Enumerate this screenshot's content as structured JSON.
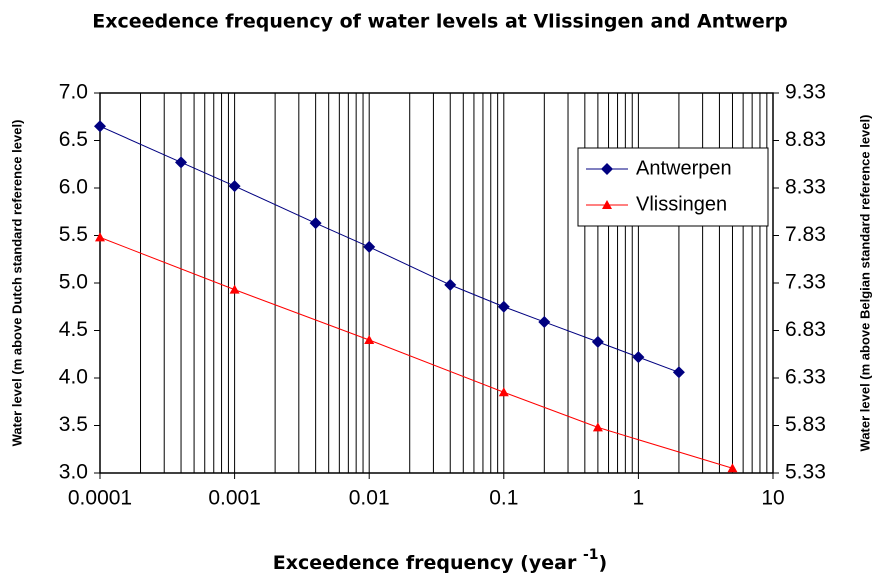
{
  "chart_data": {
    "type": "line",
    "title": "Exceedence frequency of water levels at Vlissingen and Antwerp",
    "xlabel": [
      "Exceedence frequency (year ",
      "-1",
      ")"
    ],
    "ylabel": "Water level (m above Dutch standard reference level)",
    "y2label": "Water level (m above Belgian standard reference level)",
    "xscale": "log",
    "grid": true,
    "legend": "upper right",
    "xlim": [
      0.0001,
      10
    ],
    "xticks": [
      0.0001,
      0.001,
      0.01,
      0.1,
      1,
      10
    ],
    "ylim": [
      3,
      7
    ],
    "yticks": [
      {
        "value": 3,
        "label": "3.0"
      },
      3.5,
      {
        "value": 4,
        "label": "4.0"
      },
      4.5,
      {
        "value": 5,
        "label": "5.0"
      },
      5.5,
      {
        "value": 6,
        "label": "6.0"
      },
      6.5,
      {
        "value": 7,
        "label": "7.0"
      }
    ],
    "y2lim": [
      5.33,
      9.33
    ],
    "y2ticks": [
      5.33,
      5.83,
      6.33,
      6.83,
      7.33,
      7.83,
      8.33,
      8.83,
      9.33
    ],
    "series": [
      {
        "name": "Antwerpen",
        "color": "#000080",
        "marker": "diamond",
        "x": [
          0.0001,
          0.0004,
          0.001,
          0.004,
          0.01,
          0.04,
          0.1,
          0.2,
          0.5,
          1,
          2
        ],
        "values": [
          6.65,
          6.27,
          6.02,
          5.63,
          5.38,
          4.98,
          4.75,
          4.59,
          4.38,
          4.22,
          4.06
        ]
      },
      {
        "name": "Vlissingen",
        "color": "#ff0000",
        "marker": "triangle",
        "x": [
          0.0001,
          0.001,
          0.01,
          0.1,
          0.5,
          5
        ],
        "values": [
          5.48,
          4.93,
          4.4,
          3.85,
          3.48,
          3.05
        ]
      }
    ]
  }
}
